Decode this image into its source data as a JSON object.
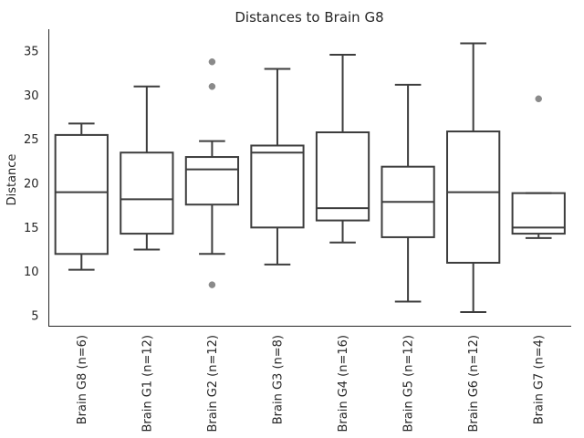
{
  "chart_data": {
    "type": "box",
    "title": "Distances to Brain G8",
    "xlabel": "",
    "ylabel": "Distance",
    "ylim": [
      3.8,
      37.5
    ],
    "yticks": [
      5,
      10,
      15,
      20,
      25,
      30,
      35
    ],
    "grid": false,
    "categories": [
      "Brain G8 (n=6)",
      "Brain G1 (n=12)",
      "Brain G2 (n=12)",
      "Brain G3 (n=8)",
      "Brain G4 (n=16)",
      "Brain G5 (n=12)",
      "Brain G6 (n=12)",
      "Brain G7 (n=4)"
    ],
    "boxes": [
      {
        "whislo": 10.2,
        "q1": 12.0,
        "med": 19.0,
        "q3": 25.5,
        "whishi": 26.8,
        "fliers": []
      },
      {
        "whislo": 12.5,
        "q1": 14.3,
        "med": 18.2,
        "q3": 23.5,
        "whishi": 31.0,
        "fliers": []
      },
      {
        "whislo": 12.0,
        "q1": 17.6,
        "med": 21.6,
        "q3": 23.0,
        "whishi": 24.8,
        "fliers": [
          33.8,
          31.0,
          8.5
        ]
      },
      {
        "whislo": 10.8,
        "q1": 15.0,
        "med": 23.5,
        "q3": 24.3,
        "whishi": 33.0,
        "fliers": []
      },
      {
        "whislo": 13.3,
        "q1": 15.8,
        "med": 17.2,
        "q3": 25.8,
        "whishi": 34.6,
        "fliers": []
      },
      {
        "whislo": 6.6,
        "q1": 13.9,
        "med": 17.9,
        "q3": 21.9,
        "whishi": 31.2,
        "fliers": []
      },
      {
        "whislo": 5.4,
        "q1": 11.0,
        "med": 19.0,
        "q3": 25.9,
        "whishi": 35.9,
        "fliers": []
      },
      {
        "whislo": 13.8,
        "q1": 14.3,
        "med": 15.0,
        "q3": 18.9,
        "whishi": 18.9,
        "fliers": [
          29.6
        ]
      }
    ]
  }
}
